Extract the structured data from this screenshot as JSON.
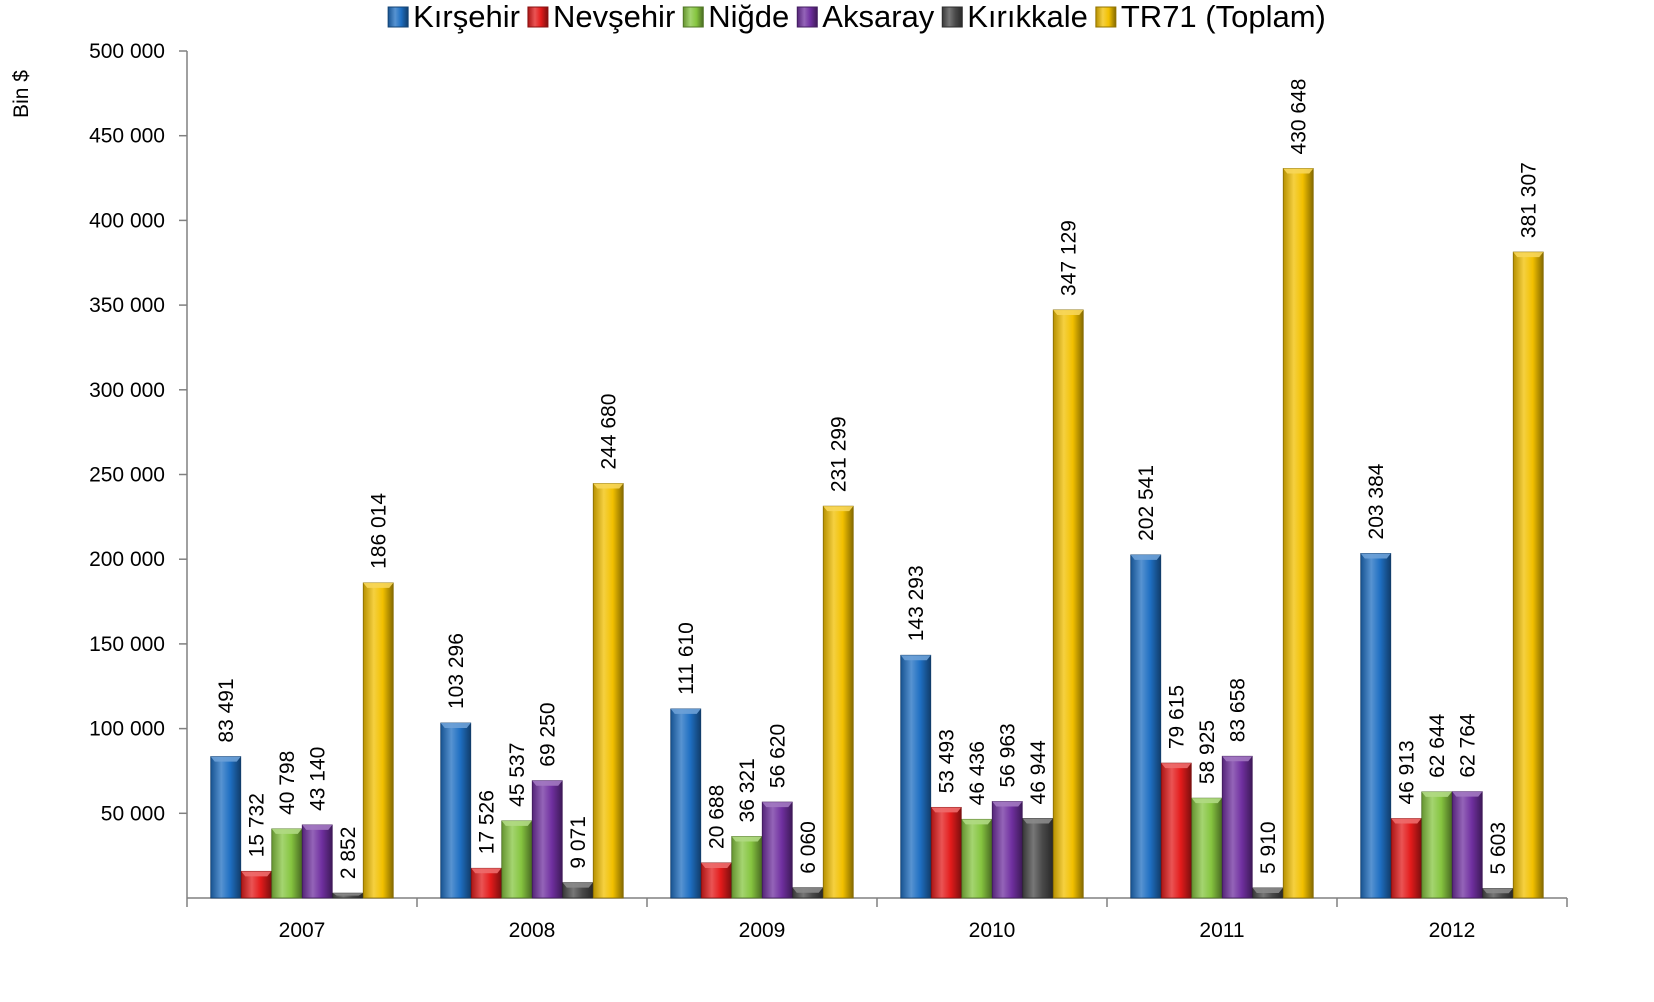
{
  "chart_data": {
    "type": "bar",
    "title": "",
    "xlabel": "",
    "ylabel": "Bin $",
    "ylim": [
      0,
      500000
    ],
    "yticks": [
      50000,
      100000,
      150000,
      200000,
      250000,
      300000,
      350000,
      400000,
      450000,
      500000
    ],
    "ytick_labels": [
      "50 000",
      "100 000",
      "150 000",
      "200 000",
      "250 000",
      "300 000",
      "350 000",
      "400 000",
      "450 000",
      "500 000"
    ],
    "categories": [
      "2007",
      "2008",
      "2009",
      "2010",
      "2011",
      "2012"
    ],
    "legend_position": "top",
    "grid": false,
    "series": [
      {
        "name": "Kırşehir",
        "color": "#1f6fc2",
        "values": [
          83491,
          103296,
          111610,
          143293,
          202541,
          203384
        ],
        "labels": [
          "83 491",
          "103 296",
          "111 610",
          "143 293",
          "202 541",
          "203 384"
        ]
      },
      {
        "name": "Nevşehir",
        "color": "#e31b1b",
        "values": [
          15732,
          17526,
          20688,
          53493,
          79615,
          46913
        ],
        "labels": [
          "15 732",
          "17 526",
          "20 688",
          "53 493",
          "79 615",
          "46 913"
        ]
      },
      {
        "name": "Niğde",
        "color": "#86c540",
        "values": [
          40798,
          45537,
          36321,
          46436,
          58925,
          62644
        ],
        "labels": [
          "40 798",
          "45 537",
          "36 321",
          "46 436",
          "58 925",
          "62 644"
        ]
      },
      {
        "name": "Aksaray",
        "color": "#7030a0",
        "values": [
          43140,
          69250,
          56620,
          56963,
          83658,
          62764
        ],
        "labels": [
          "43 140",
          "69 250",
          "56 620",
          "56 963",
          "83 658",
          "62 764"
        ]
      },
      {
        "name": "Kırıkkale",
        "color": "#4a4a4a",
        "values": [
          2852,
          9071,
          6060,
          46944,
          5910,
          5603
        ],
        "labels": [
          "2 852",
          "9 071",
          "6 060",
          "46 944",
          "5 910",
          "5 603"
        ]
      },
      {
        "name": "TR71 (Toplam)",
        "color": "#f2c000",
        "values": [
          186014,
          244680,
          231299,
          347129,
          430648,
          381307
        ],
        "labels": [
          "186 014",
          "244 680",
          "231 299",
          "347 129",
          "430 648",
          "381 307"
        ]
      }
    ]
  }
}
